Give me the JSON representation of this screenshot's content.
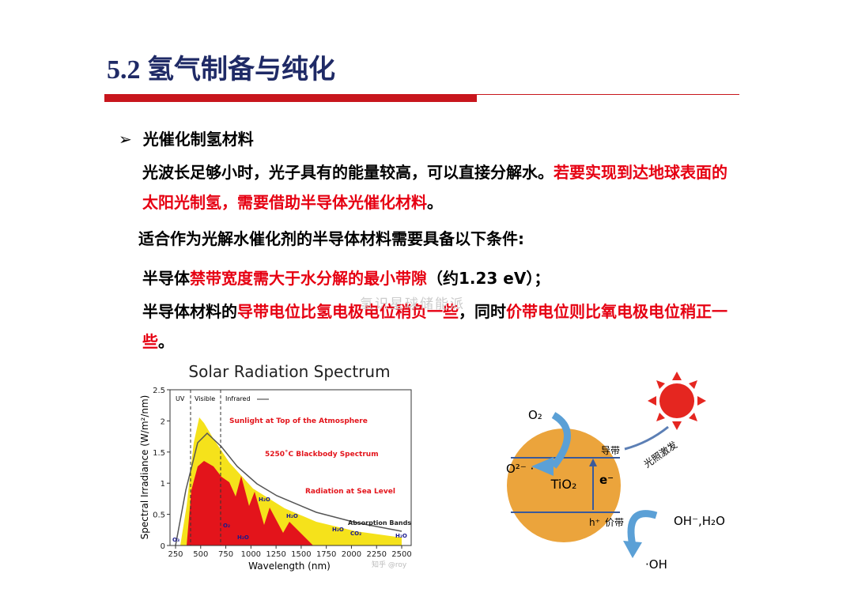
{
  "header": {
    "title": "5.2 氢气制备与纯化"
  },
  "section": {
    "heading": "光催化制氢材料",
    "paragraphs": [
      [
        "光波长足够小时，光子具有的能量较高，可以直接分解水。",
        "若要实现到达地球表面的太阳光制氢，需要借助半导体光催化材料",
        "。"
      ],
      [
        "适合作为光解水催化剂的半导体材料需要具备以下条件:"
      ],
      [
        "半导体",
        "禁带宽度需大于水分解的最小带隙",
        "（约1.23 eV）；"
      ],
      [
        "半导体材料的",
        "导带电位比氢电极电位稍负一些",
        "，同时",
        "价带电位则比氧电极电位稍正一些",
        "。"
      ]
    ]
  },
  "watermark": "氢识星球储能派",
  "spectrum": {
    "title": "Solar Radiation Spectrum",
    "x_label": "Wavelength (nm)",
    "y_label": "Spectral Irradiance (W/m²/nm)",
    "xticks": [
      "250",
      "500",
      "750",
      "1000",
      "1250",
      "1500",
      "1750",
      "2000",
      "2250",
      "2500"
    ],
    "yticks": [
      "0",
      "0.5",
      "1",
      "1.5",
      "2",
      "2.5"
    ],
    "annotations": [
      "UV",
      "Visible",
      "Infrared",
      "Sunlight at Top of the Atmosphere",
      "5250˚C Blackbody Spectrum",
      "Radiation at Sea Level",
      "Absorption Bands"
    ],
    "absorbers": [
      "O₃",
      "O₂",
      "H₂O",
      "H₂O",
      "H₂O",
      "H₂O",
      "CO₂",
      "H₂O"
    ],
    "credit": "知乎 @roy"
  },
  "diagram": {
    "labels": [
      "O₂",
      "O²⁻ ·",
      "TiO₂",
      "e⁻",
      "导带",
      "h⁺",
      "价带",
      "光照激发",
      "OH⁻,H₂O",
      "·OH"
    ]
  }
}
